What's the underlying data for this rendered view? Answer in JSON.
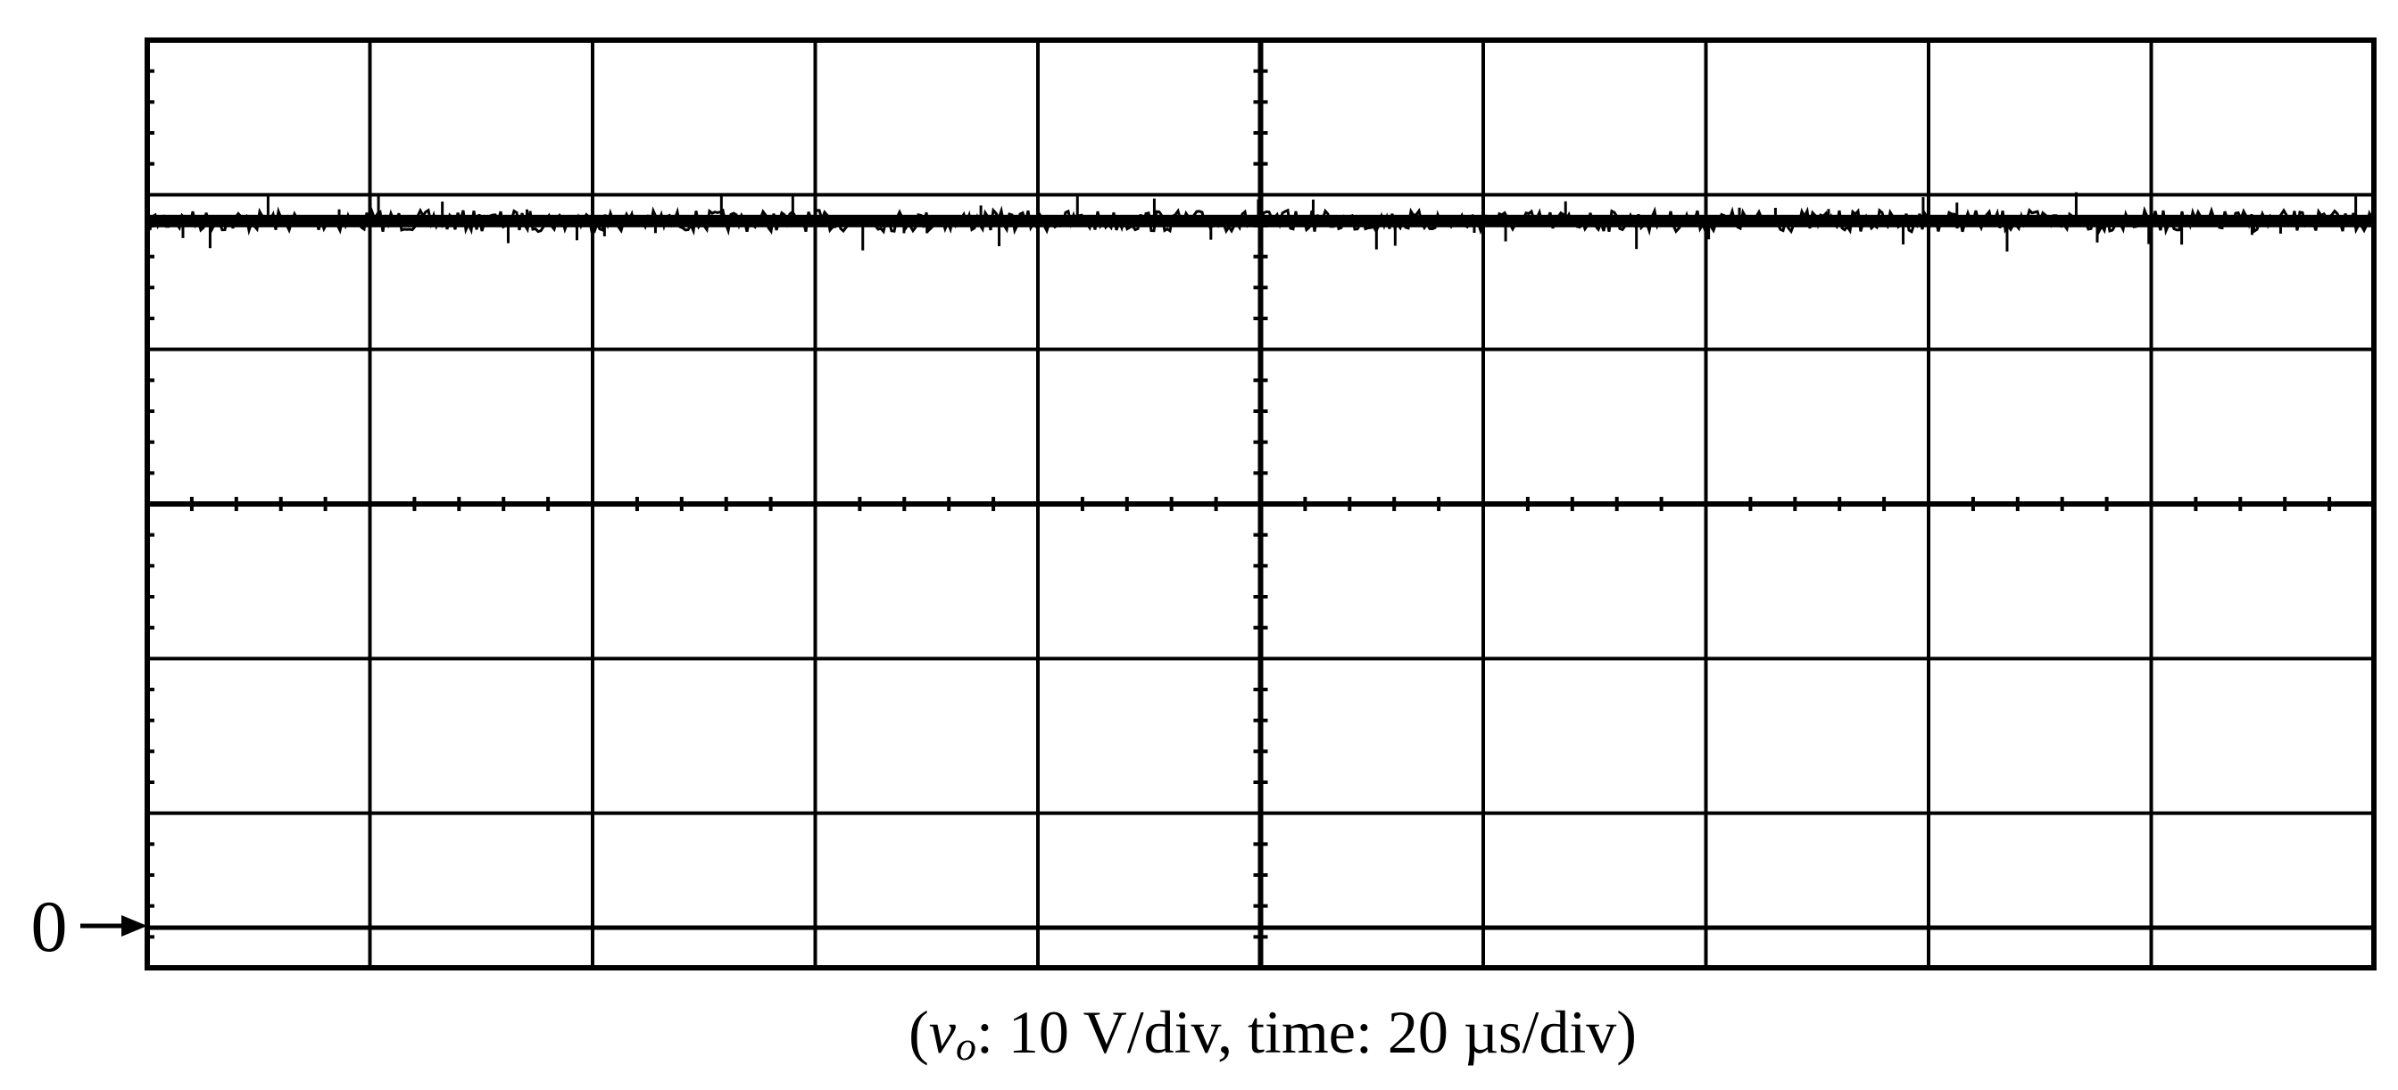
{
  "chart_data": {
    "type": "line",
    "title": "",
    "grid": true,
    "divisions": {
      "x": 10,
      "y": 6
    },
    "volts_per_div": 10,
    "time_per_div_us": 20,
    "ylim": [
      0,
      60
    ],
    "xlim_us": [
      0,
      200
    ],
    "ground_marker": {
      "label": "0",
      "level_v": 0
    },
    "series": [
      {
        "signal": "v_o",
        "dc_level_v": 48.3,
        "ripple_pk_pk_v": 1.0,
        "x_us": [
          0,
          20,
          40,
          60,
          80,
          100,
          120,
          140,
          160,
          180,
          200
        ],
        "y_v": [
          48.3,
          48.3,
          48.3,
          48.3,
          48.3,
          48.3,
          48.3,
          48.3,
          48.3,
          48.3,
          48.3
        ]
      }
    ],
    "caption": {
      "open": "(",
      "symbol": "v",
      "subscript": "o",
      "rest": ": 10 V/div, time: 20 µs/div)"
    },
    "colors": {
      "trace": "#000000",
      "grid": "#000000",
      "background": "#ffffff"
    }
  }
}
